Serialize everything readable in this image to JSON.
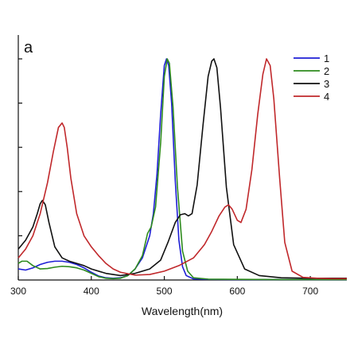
{
  "chart_data": {
    "type": "line",
    "panel_label": "a",
    "title": "",
    "xlabel": "Wavelength(nm)",
    "ylabel": "",
    "xlim": [
      300,
      750
    ],
    "ylim": [
      0,
      1.0
    ],
    "x_ticks": [
      300,
      400,
      500,
      600,
      700
    ],
    "x_tick_labels": [
      "300",
      "400",
      "500",
      "600",
      "700"
    ],
    "y_ticks": [
      0.2,
      0.4,
      0.6,
      0.8,
      1.0
    ],
    "grid": false,
    "legend_position": "top-right",
    "series": [
      {
        "name": "1",
        "color": "#1f1fd6",
        "x": [
          300,
          310,
          320,
          330,
          340,
          350,
          360,
          370,
          380,
          390,
          400,
          410,
          420,
          430,
          440,
          450,
          460,
          470,
          480,
          485,
          490,
          495,
          500,
          503,
          506,
          510,
          515,
          520,
          525,
          530,
          540,
          560,
          600,
          650,
          700,
          750
        ],
        "y": [
          0.05,
          0.045,
          0.055,
          0.07,
          0.08,
          0.085,
          0.085,
          0.08,
          0.07,
          0.055,
          0.035,
          0.018,
          0.01,
          0.008,
          0.01,
          0.02,
          0.05,
          0.1,
          0.2,
          0.3,
          0.48,
          0.75,
          0.97,
          1.0,
          0.97,
          0.8,
          0.45,
          0.18,
          0.06,
          0.02,
          0.005,
          0.003,
          0.002,
          0.002,
          0.002,
          0.002
        ]
      },
      {
        "name": "2",
        "color": "#2e8b1e",
        "x": [
          300,
          305,
          312,
          320,
          330,
          340,
          350,
          360,
          370,
          380,
          390,
          400,
          410,
          420,
          430,
          440,
          450,
          460,
          470,
          477,
          482,
          488,
          495,
          500,
          504,
          507,
          512,
          518,
          525,
          532,
          540,
          560,
          600,
          650,
          700,
          750
        ],
        "y": [
          0.075,
          0.085,
          0.085,
          0.065,
          0.05,
          0.052,
          0.058,
          0.062,
          0.06,
          0.055,
          0.045,
          0.03,
          0.015,
          0.008,
          0.006,
          0.008,
          0.02,
          0.05,
          0.11,
          0.21,
          0.24,
          0.33,
          0.62,
          0.92,
          1.0,
          0.98,
          0.78,
          0.42,
          0.13,
          0.04,
          0.01,
          0.004,
          0.003,
          0.002,
          0.002,
          0.002
        ]
      },
      {
        "name": "3",
        "color": "#111111",
        "x": [
          300,
          310,
          320,
          326,
          330,
          333,
          337,
          342,
          350,
          360,
          370,
          380,
          390,
          400,
          420,
          440,
          460,
          480,
          495,
          505,
          515,
          522,
          528,
          533,
          538,
          545,
          553,
          560,
          565,
          568,
          572,
          577,
          585,
          595,
          610,
          630,
          660,
          700,
          750
        ],
        "y": [
          0.14,
          0.18,
          0.24,
          0.3,
          0.345,
          0.36,
          0.34,
          0.26,
          0.15,
          0.1,
          0.085,
          0.075,
          0.065,
          0.05,
          0.03,
          0.02,
          0.03,
          0.05,
          0.09,
          0.17,
          0.26,
          0.295,
          0.3,
          0.29,
          0.3,
          0.43,
          0.7,
          0.92,
          0.99,
          1.0,
          0.96,
          0.78,
          0.42,
          0.16,
          0.05,
          0.02,
          0.01,
          0.008,
          0.008
        ]
      },
      {
        "name": "4",
        "color": "#c0282b",
        "x": [
          300,
          310,
          320,
          330,
          340,
          348,
          355,
          360,
          363,
          367,
          372,
          380,
          390,
          400,
          410,
          420,
          430,
          440,
          460,
          480,
          500,
          520,
          540,
          555,
          565,
          575,
          583,
          588,
          593,
          600,
          605,
          612,
          620,
          628,
          635,
          640,
          645,
          650,
          658,
          665,
          675,
          690,
          710,
          730,
          750
        ],
        "y": [
          0.1,
          0.14,
          0.2,
          0.3,
          0.44,
          0.58,
          0.69,
          0.71,
          0.69,
          0.6,
          0.46,
          0.3,
          0.2,
          0.15,
          0.11,
          0.075,
          0.05,
          0.035,
          0.022,
          0.025,
          0.04,
          0.065,
          0.1,
          0.16,
          0.22,
          0.29,
          0.33,
          0.34,
          0.32,
          0.27,
          0.26,
          0.32,
          0.5,
          0.75,
          0.93,
          1.0,
          0.97,
          0.82,
          0.46,
          0.17,
          0.04,
          0.012,
          0.008,
          0.006,
          0.006
        ]
      }
    ]
  }
}
